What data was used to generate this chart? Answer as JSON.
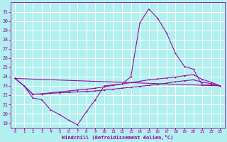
{
  "background_color": "#b2f0f0",
  "grid_color": "#c8e8e8",
  "line_color": "#990099",
  "xlabel": "Windchill (Refroidissement éolien,°C)",
  "xlabel_color": "#990099",
  "tick_color": "#990099",
  "ylim": [
    18.5,
    32
  ],
  "xlim": [
    -0.5,
    23.5
  ],
  "yticks": [
    19,
    20,
    21,
    22,
    23,
    24,
    25,
    26,
    27,
    28,
    29,
    30,
    31
  ],
  "xticks": [
    0,
    1,
    2,
    3,
    4,
    5,
    6,
    7,
    8,
    9,
    10,
    11,
    12,
    13,
    14,
    15,
    16,
    17,
    18,
    19,
    20,
    21,
    22,
    23
  ],
  "series1_x": [
    0,
    1,
    2,
    3,
    4,
    5,
    6,
    7,
    8,
    9,
    10,
    11,
    12,
    13,
    14,
    15,
    16,
    17,
    18,
    19,
    20,
    21,
    22,
    23
  ],
  "series1_y": [
    23.8,
    23.0,
    21.7,
    21.5,
    20.4,
    19.9,
    19.3,
    18.8,
    20.2,
    21.5,
    23.0,
    23.1,
    23.2,
    24.0,
    29.8,
    31.3,
    30.3,
    28.7,
    26.5,
    25.1,
    24.8,
    23.1,
    23.1,
    23.0
  ],
  "series2_x": [
    0,
    1,
    2,
    3,
    4,
    5,
    6,
    7,
    8,
    9,
    10,
    11,
    12,
    13,
    14,
    15,
    16,
    17,
    18,
    19,
    20,
    21,
    22,
    23
  ],
  "series2_y": [
    23.8,
    23.0,
    22.1,
    22.1,
    22.2,
    22.25,
    22.3,
    22.35,
    22.4,
    22.45,
    22.55,
    22.65,
    22.75,
    22.85,
    22.95,
    23.05,
    23.15,
    23.3,
    23.45,
    23.55,
    23.65,
    23.4,
    23.25,
    23.0
  ],
  "series3_x": [
    0,
    1,
    2,
    3,
    4,
    5,
    6,
    7,
    8,
    9,
    10,
    11,
    12,
    13,
    14,
    15,
    16,
    17,
    18,
    19,
    20,
    21,
    22,
    23
  ],
  "series3_y": [
    23.8,
    23.0,
    22.1,
    22.15,
    22.25,
    22.35,
    22.45,
    22.55,
    22.65,
    22.75,
    22.9,
    23.05,
    23.2,
    23.35,
    23.5,
    23.65,
    23.75,
    23.85,
    23.95,
    24.1,
    24.2,
    23.7,
    23.4,
    23.0
  ],
  "series4_x": [
    0,
    23
  ],
  "series4_y": [
    23.8,
    23.0
  ]
}
